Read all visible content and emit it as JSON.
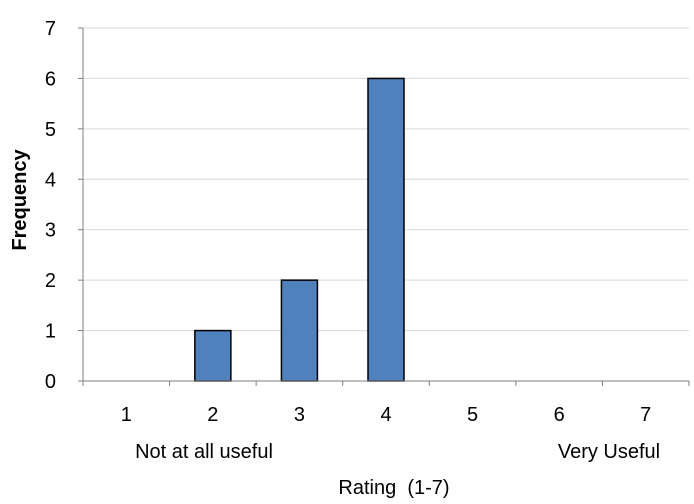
{
  "chart_data": {
    "type": "bar",
    "categories": [
      "1",
      "2",
      "3",
      "4",
      "5",
      "6",
      "7"
    ],
    "values": [
      0,
      1,
      2,
      6,
      0,
      0,
      0
    ],
    "title": "",
    "xlabel": "Rating  (1-7)",
    "ylabel": "Frequency",
    "ylim": [
      0,
      7
    ],
    "yticks": [
      "0",
      "1",
      "2",
      "3",
      "4",
      "5",
      "6",
      "7"
    ],
    "grid": true,
    "legend": "none",
    "annotations": {
      "low": "Not at all useful",
      "high": "Very Useful"
    },
    "colors": {
      "bar_fill": "#4F81BD",
      "bar_stroke": "#000000",
      "grid": "#D9D9D9",
      "axis": "#7F7F7F",
      "text": "#000000"
    }
  }
}
